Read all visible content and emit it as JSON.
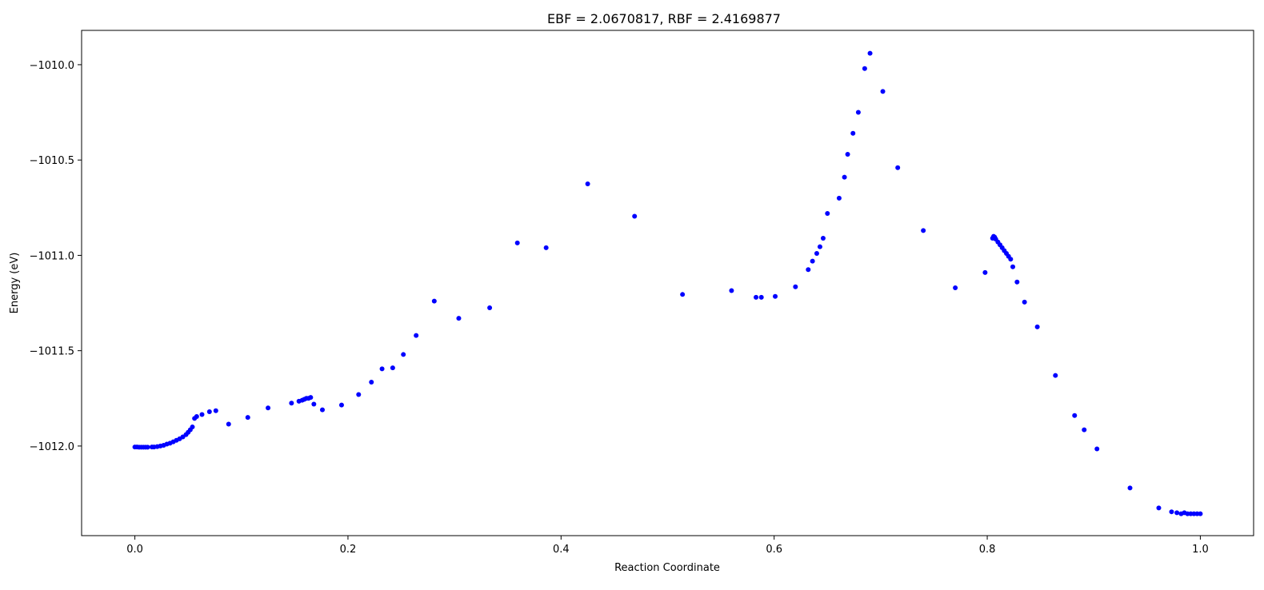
{
  "chart_data": {
    "type": "scatter",
    "title": "EBF = 2.0670817, RBF = 2.4169877",
    "xlabel": "Reaction Coordinate",
    "ylabel": "Energy (eV)",
    "xlim": [
      -0.05,
      1.05
    ],
    "ylim": [
      -1012.47,
      -1009.82
    ],
    "xticks": [
      0.0,
      0.2,
      0.4,
      0.6,
      0.8,
      1.0
    ],
    "xtick_labels": [
      "0.0",
      "0.2",
      "0.4",
      "0.6",
      "0.8",
      "1.0"
    ],
    "yticks": [
      -1012.0,
      -1011.5,
      -1011.0,
      -1010.5,
      -1010.0
    ],
    "ytick_labels": [
      "−1012.0",
      "−1011.5",
      "−1011.0",
      "−1010.5",
      "−1010.0"
    ],
    "grid": false,
    "legend": "none",
    "marker_color": "#0000ff",
    "series": [
      {
        "x": [
          0.0,
          0.002,
          0.004,
          0.006,
          0.008,
          0.01,
          0.012,
          0.016,
          0.018,
          0.021,
          0.024,
          0.027,
          0.03,
          0.033,
          0.036,
          0.039,
          0.042,
          0.045,
          0.048,
          0.05,
          0.052,
          0.054,
          0.056,
          0.058,
          0.063,
          0.07,
          0.076,
          0.088,
          0.106,
          0.125,
          0.147,
          0.154,
          0.157,
          0.159,
          0.161,
          0.163,
          0.165,
          0.168,
          0.176,
          0.194,
          0.21,
          0.222,
          0.232,
          0.242,
          0.252,
          0.264,
          0.281,
          0.304,
          0.333,
          0.359,
          0.386,
          0.425,
          0.469,
          0.514,
          0.56,
          0.583,
          0.588,
          0.601,
          0.62,
          0.632,
          0.636,
          0.64,
          0.643,
          0.646,
          0.65,
          0.661,
          0.666,
          0.669,
          0.674,
          0.679,
          0.685,
          0.69,
          0.702,
          0.716,
          0.74,
          0.77,
          0.798,
          0.805,
          0.806,
          0.807,
          0.808,
          0.81,
          0.812,
          0.814,
          0.816,
          0.818,
          0.82,
          0.822,
          0.824,
          0.828,
          0.835,
          0.847,
          0.864,
          0.882,
          0.891,
          0.903,
          0.934,
          0.961,
          0.973,
          0.978,
          0.982,
          0.985,
          0.988,
          0.991,
          0.994,
          0.997,
          1.0
        ],
        "y": [
          -1012.005,
          -1012.005,
          -1012.006,
          -1012.006,
          -1012.006,
          -1012.006,
          -1012.006,
          -1012.005,
          -1012.005,
          -1012.003,
          -1012.0,
          -1011.996,
          -1011.99,
          -1011.985,
          -1011.978,
          -1011.97,
          -1011.962,
          -1011.952,
          -1011.94,
          -1011.928,
          -1011.915,
          -1011.9,
          -1011.855,
          -1011.845,
          -1011.835,
          -1011.82,
          -1011.815,
          -1011.885,
          -1011.85,
          -1011.8,
          -1011.775,
          -1011.765,
          -1011.76,
          -1011.755,
          -1011.75,
          -1011.75,
          -1011.745,
          -1011.78,
          -1011.81,
          -1011.785,
          -1011.73,
          -1011.665,
          -1011.595,
          -1011.59,
          -1011.52,
          -1011.42,
          -1011.24,
          -1011.33,
          -1011.275,
          -1010.935,
          -1010.96,
          -1010.625,
          -1010.795,
          -1011.205,
          -1011.185,
          -1011.22,
          -1011.22,
          -1011.215,
          -1011.165,
          -1011.075,
          -1011.03,
          -1010.99,
          -1010.955,
          -1010.91,
          -1010.78,
          -1010.7,
          -1010.59,
          -1010.47,
          -1010.36,
          -1010.25,
          -1010.02,
          -1009.94,
          -1010.14,
          -1010.54,
          -1010.87,
          -1011.17,
          -1011.09,
          -1010.91,
          -1010.9,
          -1010.905,
          -1010.915,
          -1010.93,
          -1010.945,
          -1010.96,
          -1010.975,
          -1010.99,
          -1011.005,
          -1011.02,
          -1011.06,
          -1011.14,
          -1011.245,
          -1011.375,
          -1011.63,
          -1011.84,
          -1011.915,
          -1012.015,
          -1012.22,
          -1012.325,
          -1012.345,
          -1012.35,
          -1012.355,
          -1012.35,
          -1012.355,
          -1012.355,
          -1012.355,
          -1012.355,
          -1012.355
        ]
      }
    ]
  }
}
